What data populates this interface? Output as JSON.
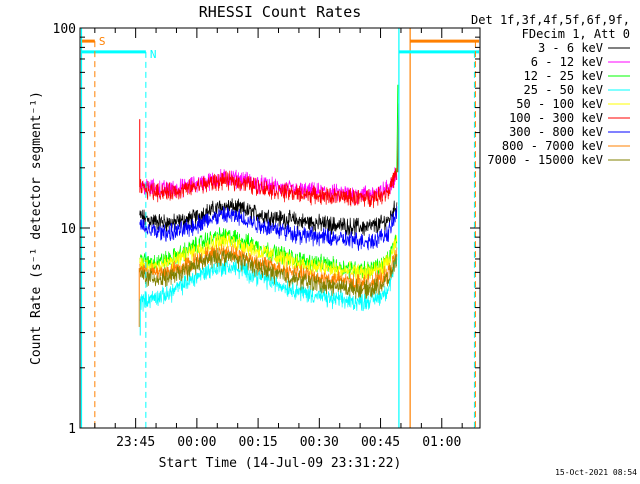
{
  "chart_data": {
    "type": "line",
    "title": "RHESSI Count Rates",
    "xlabel": "Start Time (14-Jul-09 23:31:22)",
    "ylabel": "Count Rate (s⁻¹ detector segment⁻¹)",
    "yscale": "log",
    "ylim": [
      1,
      100
    ],
    "xlim": [
      "23:31:22",
      "01:09:22"
    ],
    "x_ticks": [
      "23:45",
      "00:00",
      "00:15",
      "00:30",
      "00:45",
      "01:00"
    ],
    "y_ticks": [
      "1",
      "10",
      "100"
    ],
    "grid": false,
    "legend_header": [
      "Det 1f,3f,4f,5f,6f,9f,",
      "FDecim 1, Att 0"
    ],
    "legend_position": "right",
    "x": [
      "23:46:00",
      "23:48:00",
      "23:50:00",
      "23:52:00",
      "23:54:00",
      "23:56:00",
      "23:58:00",
      "00:00:00",
      "00:02:00",
      "00:04:00",
      "00:06:00",
      "00:08:00",
      "00:10:00",
      "00:12:00",
      "00:14:00",
      "00:16:00",
      "00:18:00",
      "00:20:00",
      "00:22:00",
      "00:24:00",
      "00:26:00",
      "00:28:00",
      "00:30:00",
      "00:32:00",
      "00:34:00",
      "00:36:00",
      "00:38:00",
      "00:40:00",
      "00:42:00",
      "00:44:00",
      "00:46:00",
      "00:48:00",
      "00:49:00"
    ],
    "series": [
      {
        "name": "3 - 6 keV",
        "color": "#000000",
        "values": [
          11.5,
          11.0,
          10.8,
          10.7,
          10.6,
          10.8,
          11.0,
          11.4,
          11.9,
          12.3,
          12.7,
          12.8,
          12.6,
          12.3,
          12.0,
          11.7,
          11.5,
          11.3,
          11.1,
          11.0,
          10.8,
          10.7,
          10.6,
          10.5,
          10.4,
          10.3,
          10.2,
          10.2,
          10.1,
          10.2,
          10.5,
          11.0,
          13.0
        ]
      },
      {
        "name": "6 - 12 keV",
        "color": "#ff00ff",
        "values": [
          16.5,
          16.0,
          15.8,
          15.7,
          15.7,
          15.9,
          16.2,
          16.6,
          17.0,
          17.4,
          17.8,
          17.9,
          17.7,
          17.4,
          17.0,
          16.6,
          16.3,
          16.0,
          15.8,
          15.6,
          15.4,
          15.3,
          15.2,
          15.1,
          15.0,
          14.9,
          14.9,
          14.8,
          14.8,
          14.9,
          15.2,
          16.0,
          19.0
        ]
      },
      {
        "name": "12 - 25 keV",
        "color": "#00ff00",
        "values": [
          7.0,
          6.8,
          6.8,
          6.9,
          7.1,
          7.4,
          7.8,
          8.2,
          8.6,
          8.9,
          9.1,
          9.1,
          8.9,
          8.6,
          8.3,
          8.0,
          7.7,
          7.5,
          7.3,
          7.1,
          6.9,
          6.8,
          6.7,
          6.6,
          6.5,
          6.4,
          6.3,
          6.3,
          6.2,
          6.3,
          6.5,
          7.0,
          9.0
        ]
      },
      {
        "name": "25 - 50 keV",
        "color": "#00ffff",
        "values": [
          4.3,
          4.4,
          4.5,
          4.6,
          4.8,
          5.1,
          5.4,
          5.7,
          6.0,
          6.2,
          6.4,
          6.4,
          6.3,
          6.1,
          5.9,
          5.7,
          5.5,
          5.3,
          5.1,
          5.0,
          4.8,
          4.7,
          4.6,
          4.5,
          4.4,
          4.4,
          4.3,
          4.3,
          4.3,
          4.4,
          4.6,
          5.0,
          7.0
        ]
      },
      {
        "name": "50 - 100 keV",
        "color": "#ffff00",
        "values": [
          6.7,
          6.5,
          6.5,
          6.6,
          6.8,
          7.1,
          7.4,
          7.8,
          8.1,
          8.4,
          8.6,
          8.6,
          8.4,
          8.2,
          7.9,
          7.6,
          7.4,
          7.2,
          7.0,
          6.8,
          6.6,
          6.5,
          6.4,
          6.3,
          6.2,
          6.1,
          6.1,
          6.0,
          6.0,
          6.1,
          6.3,
          6.8,
          8.5
        ]
      },
      {
        "name": "100 - 300 keV",
        "color": "#ff0000",
        "values": [
          16.0,
          15.5,
          15.3,
          15.2,
          15.2,
          15.4,
          15.7,
          16.1,
          16.5,
          16.9,
          17.2,
          17.3,
          17.1,
          16.8,
          16.4,
          16.0,
          15.7,
          15.4,
          15.2,
          15.0,
          14.8,
          14.7,
          14.6,
          14.5,
          14.4,
          14.3,
          14.3,
          14.2,
          14.2,
          14.3,
          14.6,
          15.5,
          19.0
        ]
      },
      {
        "name": "300 - 800 keV",
        "color": "#0000ff",
        "values": [
          10.3,
          9.8,
          9.6,
          9.5,
          9.5,
          9.7,
          10.0,
          10.4,
          10.8,
          11.2,
          11.5,
          11.6,
          11.4,
          11.1,
          10.7,
          10.4,
          10.1,
          9.9,
          9.7,
          9.5,
          9.3,
          9.2,
          9.1,
          9.0,
          8.9,
          8.8,
          8.7,
          8.7,
          8.6,
          8.7,
          9.0,
          9.5,
          12.0
        ]
      },
      {
        "name": "800 - 7000 keV",
        "color": "#ff8000",
        "values": [
          6.3,
          6.1,
          6.0,
          6.0,
          6.1,
          6.3,
          6.6,
          6.9,
          7.2,
          7.4,
          7.6,
          7.6,
          7.4,
          7.2,
          6.9,
          6.7,
          6.5,
          6.3,
          6.2,
          6.0,
          5.9,
          5.8,
          5.7,
          5.6,
          5.5,
          5.5,
          5.4,
          5.4,
          5.3,
          5.4,
          5.6,
          6.0,
          7.5
        ]
      },
      {
        "name": "7000 - 15000 keV",
        "color": "#808000",
        "values": [
          5.9,
          5.7,
          5.6,
          5.6,
          5.7,
          5.9,
          6.2,
          6.5,
          6.8,
          7.0,
          7.2,
          7.2,
          7.0,
          6.8,
          6.5,
          6.3,
          6.1,
          5.9,
          5.8,
          5.6,
          5.5,
          5.4,
          5.3,
          5.2,
          5.1,
          5.1,
          5.0,
          5.0,
          4.9,
          5.0,
          5.2,
          5.6,
          7.0
        ]
      }
    ],
    "annotations": [
      {
        "label": "S",
        "color": "#ff8000"
      },
      {
        "label": "N",
        "color": "#00ffff"
      }
    ]
  },
  "footer": {
    "timestamp": "15-Oct-2021 08:54"
  }
}
